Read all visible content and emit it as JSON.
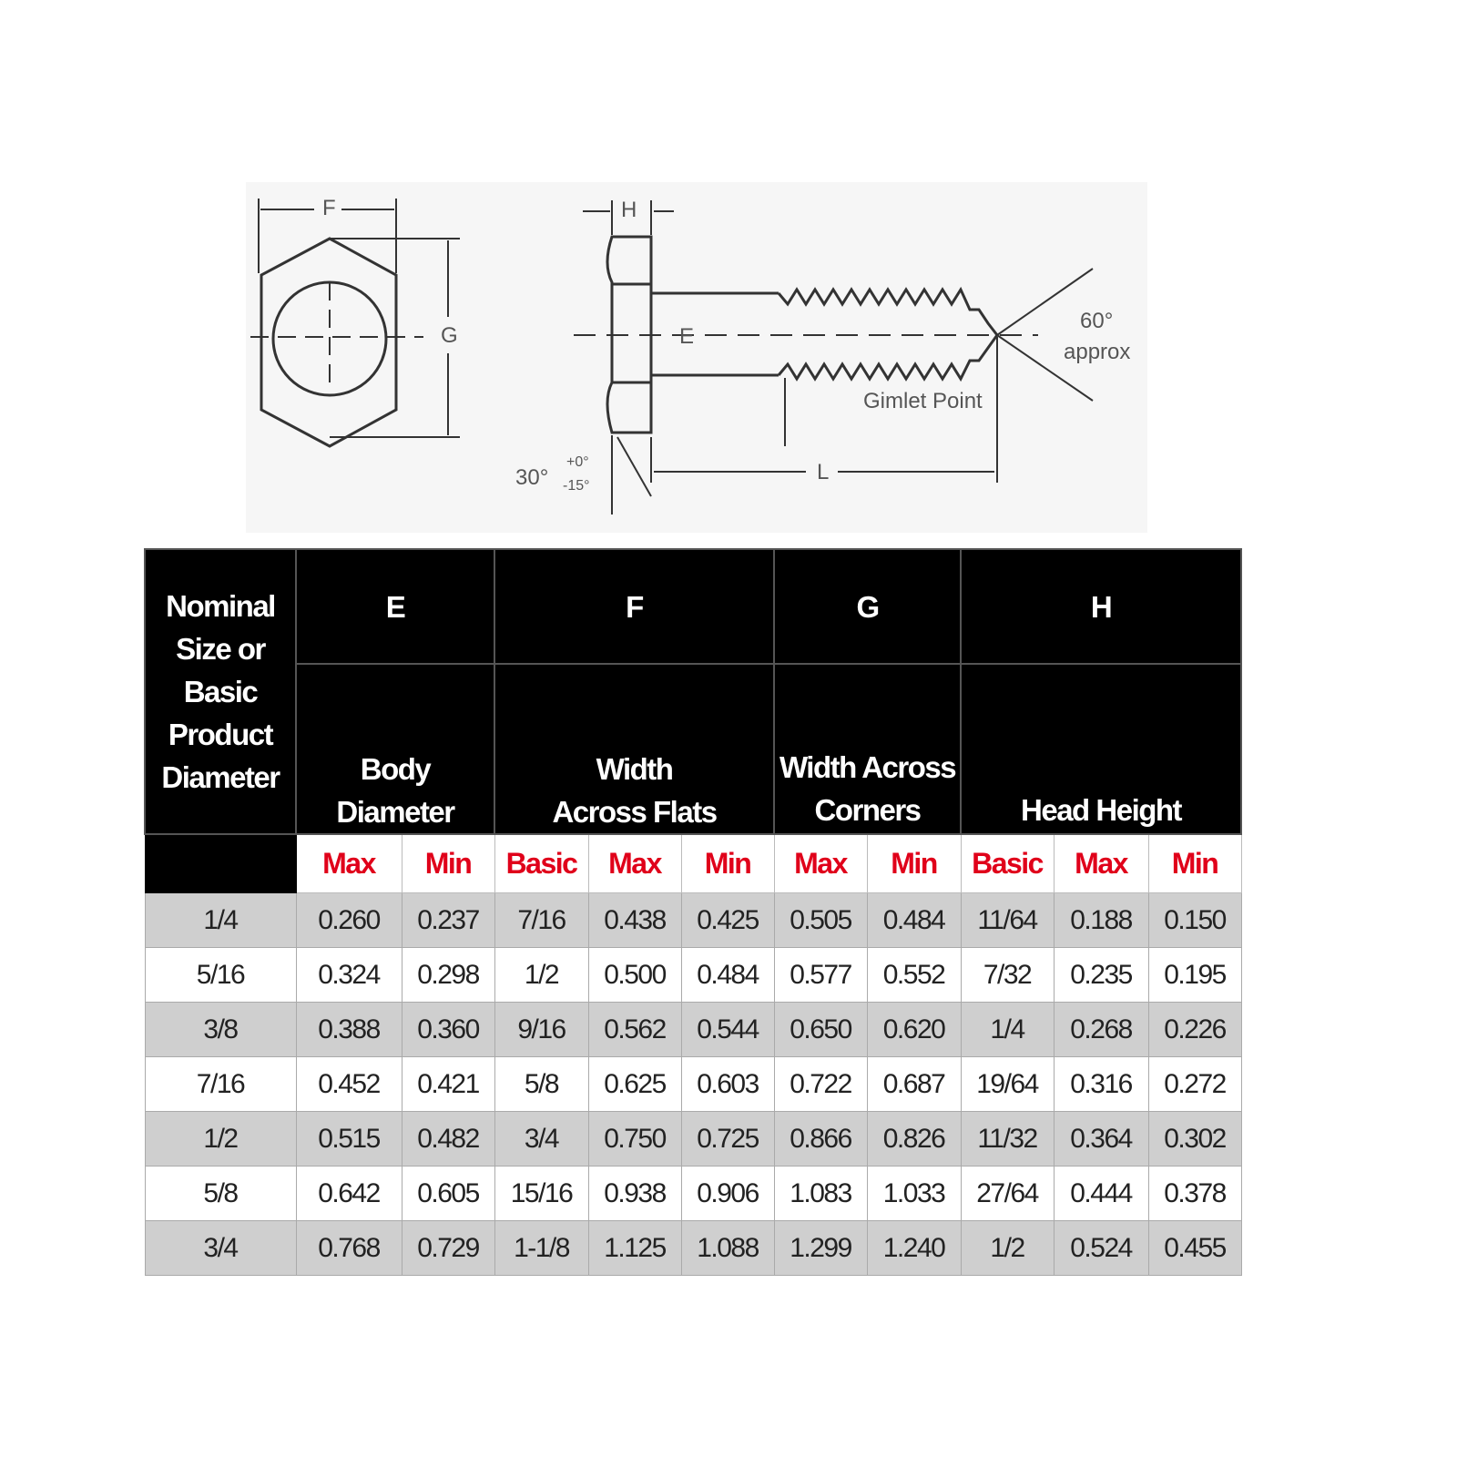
{
  "diagram": {
    "labels": {
      "F": "F",
      "G": "G",
      "H": "H",
      "E": "E",
      "L": "L",
      "angle": "60°",
      "approx": "approx",
      "gimlet": "Gimlet Point",
      "chamfer": "30°",
      "tol_plus": "+0°",
      "tol_minus": "-15°"
    }
  },
  "table": {
    "col0_header": "Nominal Size or Basic Product Diameter",
    "groups": [
      {
        "letter": "E",
        "name": "Body Diameter"
      },
      {
        "letter": "F",
        "name": "Width Across Flats"
      },
      {
        "letter": "G",
        "name": "Width Across Corners"
      },
      {
        "letter": "H",
        "name": "Head Height"
      }
    ],
    "subheaders": [
      "Max",
      "Min",
      "Basic",
      "Max",
      "Min",
      "Max",
      "Min",
      "Basic",
      "Max",
      "Min"
    ],
    "rows": [
      [
        "1/4",
        "0.260",
        "0.237",
        "7/16",
        "0.438",
        "0.425",
        "0.505",
        "0.484",
        "11/64",
        "0.188",
        "0.150"
      ],
      [
        "5/16",
        "0.324",
        "0.298",
        "1/2",
        "0.500",
        "0.484",
        "0.577",
        "0.552",
        "7/32",
        "0.235",
        "0.195"
      ],
      [
        "3/8",
        "0.388",
        "0.360",
        "9/16",
        "0.562",
        "0.544",
        "0.650",
        "0.620",
        "1/4",
        "0.268",
        "0.226"
      ],
      [
        "7/16",
        "0.452",
        "0.421",
        "5/8",
        "0.625",
        "0.603",
        "0.722",
        "0.687",
        "19/64",
        "0.316",
        "0.272"
      ],
      [
        "1/2",
        "0.515",
        "0.482",
        "3/4",
        "0.750",
        "0.725",
        "0.866",
        "0.826",
        "11/32",
        "0.364",
        "0.302"
      ],
      [
        "5/8",
        "0.642",
        "0.605",
        "15/16",
        "0.938",
        "0.906",
        "1.083",
        "1.033",
        "27/64",
        "0.444",
        "0.378"
      ],
      [
        "3/4",
        "0.768",
        "0.729",
        "1-1/8",
        "1.125",
        "1.088",
        "1.299",
        "1.240",
        "1/2",
        "0.524",
        "0.455"
      ]
    ]
  },
  "colors": {
    "header_bg": "#000000",
    "subheader_text": "#e0001a",
    "stripe": "#cfcfcf"
  }
}
